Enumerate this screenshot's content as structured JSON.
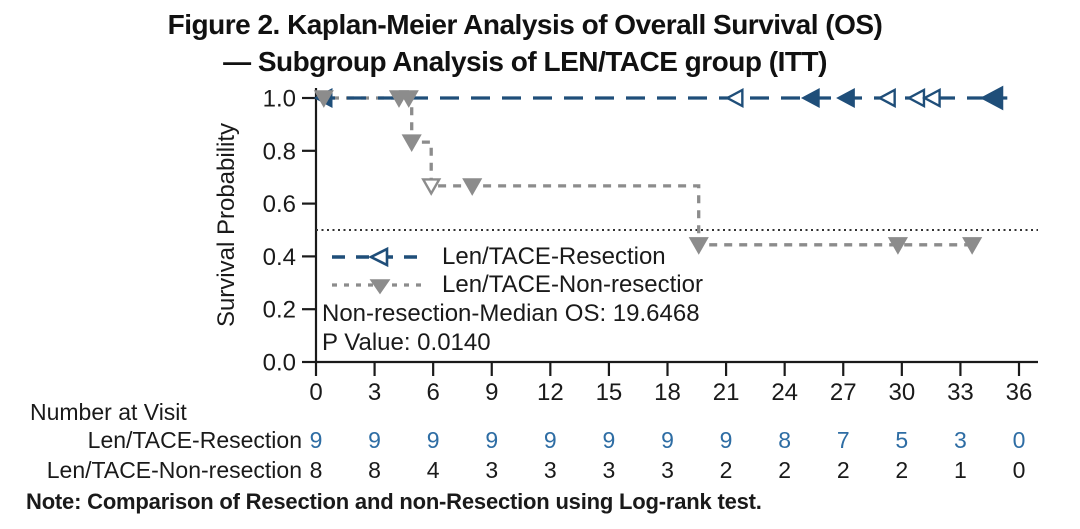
{
  "title": {
    "line1": "Figure 2. Kaplan-Meier Analysis of Overall Survival (OS)",
    "line2": "— Subgroup Analysis of LEN/TACE group (ITT)"
  },
  "legend": {
    "items": [
      {
        "label": "Len/TACE-Resection"
      },
      {
        "label": "Len/TACE-Non-resectior"
      }
    ]
  },
  "annotations": {
    "median_os": "Non-resection-Median OS: 19.6468",
    "p_value": "P Value: 0.0140"
  },
  "note": "Note: Comparison of Resection and non-Resection using Log-rank test.",
  "colors": {
    "resection_line": "#1f4e79",
    "resection_numbers": "#2e6da4",
    "non_resection_line": "#8c8c8c",
    "text": "#1a1a1a",
    "reference_line": "#333333"
  },
  "number_at_visit": {
    "header": "Number at Visit",
    "columns": [
      0,
      3,
      6,
      9,
      12,
      15,
      18,
      21,
      24,
      27,
      30,
      33,
      36
    ],
    "rows": [
      {
        "label": "Len/TACE-Resection",
        "color": "#2e6da4",
        "values": [
          9,
          9,
          9,
          9,
          9,
          9,
          9,
          9,
          8,
          7,
          5,
          3,
          0
        ]
      },
      {
        "label": "Len/TACE-Non-resection",
        "color": "#1a1a1a",
        "values": [
          8,
          8,
          4,
          3,
          3,
          3,
          3,
          2,
          2,
          2,
          2,
          1,
          0
        ]
      }
    ]
  },
  "chart_data": {
    "type": "line",
    "subtype": "kaplan-meier-step",
    "title": "Figure 2. Kaplan-Meier Analysis of Overall Survival (OS) — Subgroup Analysis of LEN/TACE group (ITT)",
    "xlabel": "",
    "ylabel": "Survival Probability",
    "xlim": [
      0,
      37
    ],
    "ylim": [
      0.0,
      1.05
    ],
    "x_ticks": [
      0,
      3,
      6,
      9,
      12,
      15,
      18,
      21,
      24,
      27,
      30,
      33,
      36
    ],
    "y_ticks": [
      "1.0",
      "0.8",
      "0.6",
      "0.4",
      "0.2",
      "0.0"
    ],
    "grid": false,
    "legend_position": "inside-left-middle",
    "reference_line": {
      "y": 0.5,
      "style": "dotted",
      "color": "#333333"
    },
    "annotations": [
      "Non-resection-Median OS: 19.6468",
      "P Value: 0.0140"
    ],
    "series": [
      {
        "name": "Len/TACE-Non-resection",
        "color": "#8c8c8c",
        "dash": "8 7",
        "marker": "down-triangle",
        "step_points": [
          [
            0,
            1.0
          ],
          [
            4.9,
            1.0
          ],
          [
            4.9,
            0.833
          ],
          [
            5.9,
            0.833
          ],
          [
            5.9,
            0.667
          ],
          [
            19.6,
            0.667
          ],
          [
            19.6,
            0.444
          ],
          [
            33.8,
            0.444
          ]
        ],
        "markers": [
          {
            "x": 0.4,
            "y": 1.0,
            "style": "solid"
          },
          {
            "x": 4.25,
            "y": 1.0,
            "style": "solid"
          },
          {
            "x": 4.75,
            "y": 1.0,
            "style": "solid"
          },
          {
            "x": 4.9,
            "y": 0.833,
            "style": "solid"
          },
          {
            "x": 5.9,
            "y": 0.667,
            "style": "open"
          },
          {
            "x": 8.0,
            "y": 0.667,
            "style": "solid"
          },
          {
            "x": 19.6,
            "y": 0.444,
            "style": "solid"
          },
          {
            "x": 29.8,
            "y": 0.444,
            "style": "solid"
          },
          {
            "x": 33.6,
            "y": 0.444,
            "style": "solid"
          }
        ]
      },
      {
        "name": "Len/TACE-Resection",
        "color": "#1f4e79",
        "dash": "19 12",
        "marker": "left-triangle",
        "step_points": [
          [
            0,
            1.0
          ],
          [
            35.4,
            1.0
          ]
        ],
        "markers": [
          {
            "x": 0.45,
            "y": 1.0,
            "style": "solid"
          },
          {
            "x": 21.5,
            "y": 1.0,
            "style": "open"
          },
          {
            "x": 25.4,
            "y": 1.0,
            "style": "solid"
          },
          {
            "x": 27.2,
            "y": 1.0,
            "style": "solid"
          },
          {
            "x": 29.3,
            "y": 1.0,
            "style": "open"
          },
          {
            "x": 30.8,
            "y": 1.0,
            "style": "open"
          },
          {
            "x": 31.6,
            "y": 1.0,
            "style": "open"
          },
          {
            "x": 34.7,
            "y": 1.0,
            "style": "solid",
            "size": 1.3
          }
        ]
      }
    ]
  }
}
